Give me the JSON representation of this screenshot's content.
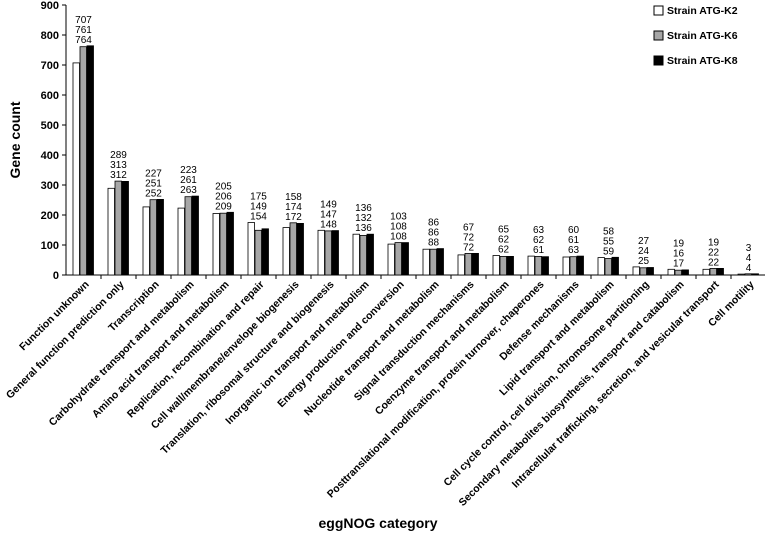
{
  "chart_data": {
    "type": "bar",
    "xlabel": "eggNOG category",
    "ylabel": "Gene count",
    "ylim": [
      0,
      900
    ],
    "yticks": [
      0,
      100,
      200,
      300,
      400,
      500,
      600,
      700,
      800,
      900
    ],
    "legend_placement": "top-right",
    "grid": false,
    "categories": [
      "Function unknown",
      "General function prediction only",
      "Transcription",
      "Carbohydrate transport and metabolism",
      "Amino acid transport and metabolism",
      "Replication, recombination and repair",
      "Cell wall/membrane/envelope biogenesis",
      "Translation, ribosomal structure and biogenesis",
      "Inorganic ion transport and metabolism",
      "Energy production and conversion",
      "Nucleotide transport and metabolism",
      "Signal transduction mechanisms",
      "Coenzyme transport and metabolism",
      "Posttranslational modification, protein turnover, chaperones",
      "Defense mechanisms",
      "Lipid transport and metabolism",
      "Cell cycle control, cell division, chromosome partitioning",
      "Secondary metabolites biosynthesis, transport and catabolism",
      "Intracellular trafficking, secretion, and vesicular transport",
      "Cell motility"
    ],
    "series": [
      {
        "name": "Strain ATG-K2",
        "color": "#ffffff",
        "values": [
          707,
          289,
          227,
          223,
          205,
          175,
          158,
          149,
          136,
          103,
          86,
          67,
          65,
          63,
          60,
          58,
          27,
          19,
          19,
          3
        ]
      },
      {
        "name": "Strain ATG-K6",
        "color": "#a6a6a6",
        "values": [
          761,
          313,
          251,
          261,
          206,
          149,
          174,
          147,
          132,
          108,
          86,
          72,
          62,
          62,
          61,
          55,
          24,
          16,
          22,
          4
        ]
      },
      {
        "name": "Strain ATG-K8",
        "color": "#000000",
        "values": [
          764,
          312,
          252,
          263,
          209,
          154,
          172,
          148,
          136,
          108,
          88,
          72,
          62,
          61,
          63,
          59,
          25,
          17,
          22,
          4
        ]
      }
    ]
  }
}
